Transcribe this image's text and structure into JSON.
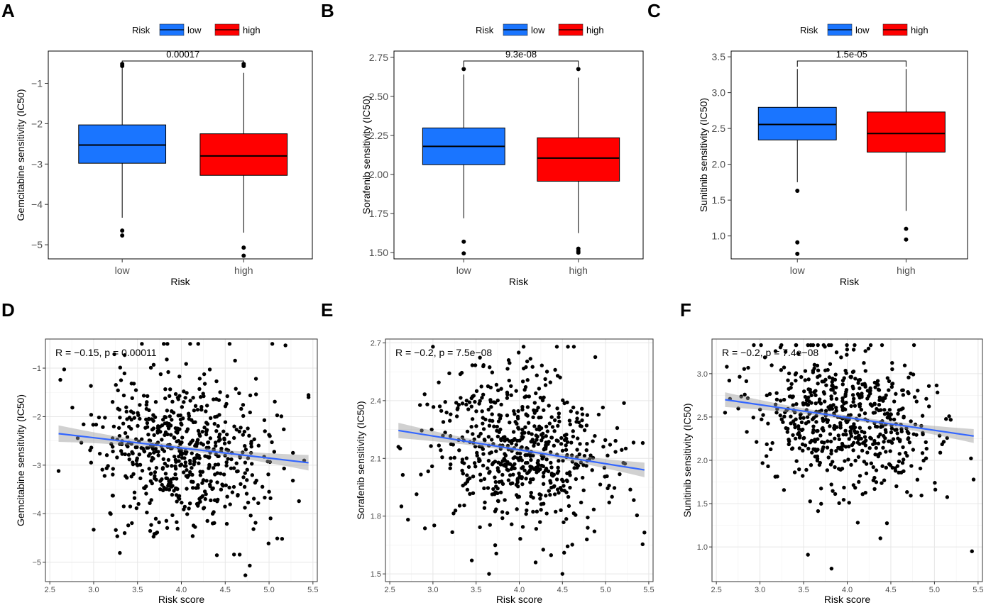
{
  "chart_data": [
    {
      "panel": "A",
      "type": "box",
      "legend": {
        "title": "Risk",
        "items": [
          {
            "label": "low",
            "color": "#1a75ff"
          },
          {
            "label": "high",
            "color": "#ff0000"
          }
        ]
      },
      "categories": [
        "low",
        "high"
      ],
      "xlabel": "Risk",
      "ylabel": "Gemcitabine sensitivity (IC50)",
      "ylim": [
        -5.35,
        -0.2
      ],
      "yticks": [
        -5,
        -4,
        -3,
        -2,
        -1
      ],
      "pvalue": "0.00017",
      "boxes": [
        {
          "group": "low",
          "color": "#1a75ff",
          "q1": -2.98,
          "median": -2.53,
          "q3": -2.03,
          "whisker_low": -4.33,
          "whisker_high": -0.62,
          "outliers": [
            -4.65,
            -4.77,
            -0.52,
            -0.57
          ]
        },
        {
          "group": "high",
          "color": "#ff0000",
          "q1": -3.28,
          "median": -2.8,
          "q3": -2.25,
          "whisker_low": -4.7,
          "whisker_high": -0.74,
          "outliers": [
            -5.07,
            -5.27,
            -0.52,
            -0.57
          ]
        }
      ]
    },
    {
      "panel": "B",
      "type": "box",
      "legend": {
        "title": "Risk",
        "items": [
          {
            "label": "low",
            "color": "#1a75ff"
          },
          {
            "label": "high",
            "color": "#ff0000"
          }
        ]
      },
      "categories": [
        "low",
        "high"
      ],
      "xlabel": "Risk",
      "ylabel": "Sorafenib sensitivity (IC50)",
      "ylim": [
        1.46,
        2.79
      ],
      "yticks": [
        1.5,
        1.75,
        2.0,
        2.25,
        2.5,
        2.75
      ],
      "yticklabels": [
        "1.50",
        "1.75",
        "2.00",
        "2.25",
        "2.50",
        "2.75"
      ],
      "pvalue": "9.3e-08",
      "boxes": [
        {
          "group": "low",
          "color": "#1a75ff",
          "q1": 2.063,
          "median": 2.18,
          "q3": 2.298,
          "whisker_low": 1.72,
          "whisker_high": 2.64,
          "outliers": [
            1.57,
            1.495,
            2.675
          ]
        },
        {
          "group": "high",
          "color": "#ff0000",
          "q1": 1.957,
          "median": 2.105,
          "q3": 2.235,
          "whisker_low": 1.625,
          "whisker_high": 2.62,
          "outliers": [
            1.525,
            1.51,
            1.5,
            2.675
          ]
        }
      ]
    },
    {
      "panel": "C",
      "type": "box",
      "legend": {
        "title": "Risk",
        "items": [
          {
            "label": "low",
            "color": "#1a75ff"
          },
          {
            "label": "high",
            "color": "#ff0000"
          }
        ]
      },
      "categories": [
        "low",
        "high"
      ],
      "xlabel": "Risk",
      "ylabel": "Sunitinib sensitivity (IC50)",
      "ylim": [
        0.68,
        3.58
      ],
      "yticks": [
        1.0,
        1.5,
        2.0,
        2.5,
        3.0,
        3.5
      ],
      "yticklabels": [
        "1.0",
        "1.5",
        "2.0",
        "2.5",
        "3.0",
        "3.5"
      ],
      "pvalue": "1.5e-05",
      "boxes": [
        {
          "group": "low",
          "color": "#1a75ff",
          "q1": 2.34,
          "median": 2.555,
          "q3": 2.795,
          "whisker_low": 1.75,
          "whisker_high": 3.33,
          "outliers": [
            1.63,
            0.91,
            0.75
          ]
        },
        {
          "group": "high",
          "color": "#ff0000",
          "q1": 2.17,
          "median": 2.43,
          "q3": 2.73,
          "whisker_low": 1.35,
          "whisker_high": 3.33,
          "outliers": [
            1.1,
            0.95
          ]
        }
      ]
    },
    {
      "panel": "D",
      "type": "scatter",
      "xlabel": "Risk score",
      "ylabel": "Gemcitabine sensitivity (IC50)",
      "xlim": [
        2.45,
        5.55
      ],
      "ylim": [
        -5.4,
        -0.4
      ],
      "xticks": [
        2.5,
        3.0,
        3.5,
        4.0,
        4.5,
        5.0,
        5.5
      ],
      "xticklabels": [
        "2.5",
        "3.0",
        "3.5",
        "4.0",
        "4.5",
        "5.0",
        "5.5"
      ],
      "yticks": [
        -5,
        -4,
        -3,
        -2,
        -1
      ],
      "annotation": "R = −0.15, p = 0.00011",
      "fit": {
        "x0": 2.6,
        "y0": -2.35,
        "x1": 5.45,
        "y1": -2.95,
        "se_start": 0.17,
        "se_mid": 0.05,
        "se_end": 0.16
      },
      "cloud": {
        "n": 620,
        "x_mean": 4.0,
        "x_sd": 0.5,
        "y_mean": -2.68,
        "y_sd": 0.8,
        "y_min": -5.3,
        "y_max": -0.5,
        "slope": -0.21,
        "seed": 11
      },
      "points_extra": [
        [
          4.73,
          -5.27
        ],
        [
          4.78,
          -5.07
        ],
        [
          2.6,
          -3.12
        ],
        [
          3.0,
          -4.33
        ],
        [
          5.45,
          -1.6
        ],
        [
          3.55,
          -0.5
        ],
        [
          4.1,
          -0.5
        ],
        [
          4.55,
          -0.5
        ]
      ]
    },
    {
      "panel": "E",
      "type": "scatter",
      "xlabel": "Risk score",
      "ylabel": "Sorafenib sensitivity (IC50)",
      "xlim": [
        2.45,
        5.55
      ],
      "ylim": [
        1.46,
        2.72
      ],
      "xticks": [
        2.5,
        3.0,
        3.5,
        4.0,
        4.5,
        5.0,
        5.5
      ],
      "xticklabels": [
        "2.5",
        "3.0",
        "3.5",
        "4.0",
        "4.5",
        "5.0",
        "5.5"
      ],
      "yticks": [
        1.5,
        1.8,
        2.1,
        2.4,
        2.7
      ],
      "yticklabels": [
        "1.5",
        "1.8",
        "2.1",
        "2.4",
        "2.7"
      ],
      "annotation": "R = −0.2, p = 7.5e−08",
      "fit": {
        "x0": 2.6,
        "y0": 2.245,
        "x1": 5.45,
        "y1": 2.04,
        "se_start": 0.04,
        "se_mid": 0.012,
        "se_end": 0.038
      },
      "cloud": {
        "n": 620,
        "x_mean": 4.0,
        "x_sd": 0.5,
        "y_mean": 2.14,
        "y_sd": 0.2,
        "y_min": 1.5,
        "y_max": 2.68,
        "slope": -0.07,
        "seed": 23
      },
      "points_extra": [
        [
          3.65,
          1.5
        ],
        [
          4.5,
          1.5
        ],
        [
          3.45,
          1.57
        ],
        [
          2.6,
          2.16
        ],
        [
          4.05,
          2.68
        ],
        [
          3.0,
          2.68
        ]
      ]
    },
    {
      "panel": "F",
      "type": "scatter",
      "xlabel": "Risk score",
      "ylabel": "Sunitinib sensitivity (IC50)",
      "xlim": [
        2.45,
        5.55
      ],
      "ylim": [
        0.6,
        3.4
      ],
      "xticks": [
        2.5,
        3.0,
        3.5,
        4.0,
        4.5,
        5.0,
        5.5
      ],
      "xticklabels": [
        "2.5",
        "3.0",
        "3.5",
        "4.0",
        "4.5",
        "5.0",
        "5.5"
      ],
      "yticks": [
        1.0,
        1.5,
        2.0,
        2.5,
        3.0
      ],
      "yticklabels": [
        "1.0",
        "1.5",
        "2.0",
        "2.5",
        "3.0"
      ],
      "annotation": "R = −0.2, p = 7.4e−08",
      "fit": {
        "x0": 2.6,
        "y0": 2.7,
        "x1": 5.45,
        "y1": 2.28,
        "se_start": 0.085,
        "se_mid": 0.025,
        "se_end": 0.08
      },
      "cloud": {
        "n": 620,
        "x_mean": 4.0,
        "x_sd": 0.5,
        "y_mean": 2.47,
        "y_sd": 0.4,
        "y_min": 0.9,
        "y_max": 3.33,
        "slope": -0.15,
        "seed": 37
      },
      "points_extra": [
        [
          3.82,
          0.75
        ],
        [
          3.55,
          0.91
        ],
        [
          5.43,
          0.95
        ],
        [
          4.38,
          1.1
        ],
        [
          2.6,
          2.55
        ],
        [
          3.55,
          3.33
        ]
      ]
    }
  ],
  "panel_letters": [
    "A",
    "B",
    "C",
    "D",
    "E",
    "F"
  ]
}
